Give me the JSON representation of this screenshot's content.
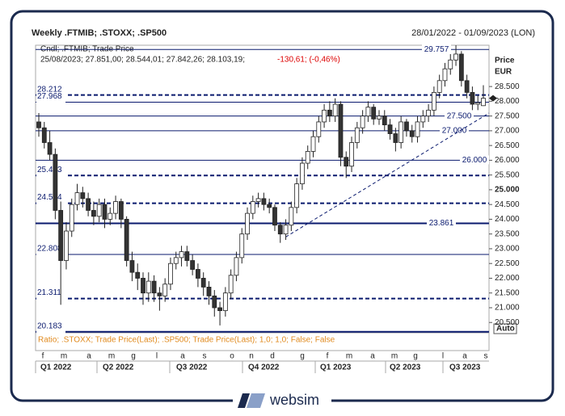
{
  "chart_data": {
    "type": "candlestick",
    "title": "Weekly .FTMIB; .STOXX; .SP500",
    "date_range": "28/01/2022 - 01/09/2023 (LON)",
    "series_label": "Cndl; .FTMIB; Trade Price",
    "last_bar": "25/08/2023; 27.851,00; 28.544,01; 27.842,26; 28.103,19;",
    "last_change": "-130,61; (-0,46%)",
    "axis_title": "Price",
    "axis_unit": "EUR",
    "scale_mode": "Auto",
    "indicator_label": "Ratio; .STOXX; Trade Price(Last); .SP500; Trade Price(Last); 1,0; 1,0; False; False",
    "brand": "websim",
    "months": [
      "f",
      "m",
      "a",
      "m",
      "g",
      "l",
      "a",
      "s",
      "o",
      "n",
      "d",
      "g",
      "f",
      "m",
      "a",
      "m",
      "g",
      "l",
      "a",
      "s"
    ],
    "quarters": [
      "Q1 2022",
      "Q2 2022",
      "Q3 2022",
      "Q4 2022",
      "Q1 2023",
      "Q2 2023",
      "Q3 2023"
    ],
    "ylim": [
      20150,
      29900
    ],
    "yticks": [
      {
        "value": 20500,
        "label": "20.500"
      },
      {
        "value": 21000,
        "label": "21.000"
      },
      {
        "value": 21500,
        "label": "21.500"
      },
      {
        "value": 22000,
        "label": "22.000"
      },
      {
        "value": 22500,
        "label": "22.500"
      },
      {
        "value": 23000,
        "label": "23.000"
      },
      {
        "value": 23500,
        "label": "23.500"
      },
      {
        "value": 24000,
        "label": "24.000"
      },
      {
        "value": 24500,
        "label": "24.500"
      },
      {
        "value": 25000,
        "label": "25.000"
      },
      {
        "value": 25500,
        "label": "25.500"
      },
      {
        "value": 26000,
        "label": "26.000"
      },
      {
        "value": 26500,
        "label": "26.500"
      },
      {
        "value": 27000,
        "label": "27.000"
      },
      {
        "value": 27500,
        "label": "27.500"
      },
      {
        "value": 28000,
        "label": "28.000"
      },
      {
        "value": 28500,
        "label": "28.500"
      }
    ],
    "levels": [
      {
        "value": 29757,
        "label": "29.757",
        "dashed": false,
        "bold": false,
        "label_side": "mid"
      },
      {
        "value": 28212,
        "label": "28.212",
        "dashed": true,
        "bold": true,
        "label_side": "left"
      },
      {
        "value": 27968,
        "label": "27.968",
        "dashed": false,
        "bold": false,
        "label_side": "left"
      },
      {
        "value": 27500,
        "label": "27.500",
        "dashed": false,
        "bold": false,
        "label_side": "mid"
      },
      {
        "value": 27000,
        "label": "27.000",
        "dashed": false,
        "bold": false,
        "label_side": "mid"
      },
      {
        "value": 26000,
        "label": "26.000",
        "dashed": false,
        "bold": false,
        "label_side": "mid"
      },
      {
        "value": 25483,
        "label": "25.483",
        "dashed": true,
        "bold": true,
        "label_side": "left"
      },
      {
        "value": 24544,
        "label": "24.544",
        "dashed": true,
        "bold": true,
        "label_side": "left"
      },
      {
        "value": 23861,
        "label": "23.861",
        "dashed": false,
        "bold": true,
        "label_side": "mid"
      },
      {
        "value": 22808,
        "label": "22.808",
        "dashed": false,
        "bold": false,
        "label_side": "left"
      },
      {
        "value": 21311,
        "label": "21.311",
        "dashed": true,
        "bold": true,
        "label_side": "left"
      },
      {
        "value": 20183,
        "label": "20.183",
        "dashed": false,
        "bold": true,
        "label_side": "left"
      }
    ],
    "trendline": [
      23400,
      27600
    ],
    "open": [
      27300,
      27100,
      26600,
      26200,
      24300,
      22600,
      23600,
      24500,
      24900,
      24700,
      24300,
      24100,
      24500,
      24000,
      24200,
      24600,
      24000,
      22600,
      22200,
      22000,
      21500,
      21900,
      21500,
      21400,
      21800,
      22500,
      22700,
      22900,
      22600,
      22300,
      22000,
      21700,
      21400,
      21000,
      20900,
      21500,
      22100,
      22700,
      23500,
      24200,
      24600,
      24700,
      24500,
      24400,
      23800,
      23500,
      23800,
      24400,
      25200,
      25900,
      26300,
      26800,
      27300,
      27700,
      27500,
      27900,
      26100,
      25800,
      26600,
      27100,
      27500,
      27800,
      27400,
      27500,
      27200,
      26900,
      26600,
      27300,
      27000,
      26800,
      27300,
      27500,
      27700,
      28300,
      28700,
      29100,
      29400,
      29600,
      28700,
      28300,
      27900,
      27851
    ],
    "high": [
      27600,
      27300,
      27000,
      26400,
      24600,
      23900,
      24700,
      25200,
      25100,
      24900,
      24600,
      24700,
      24700,
      24400,
      24800,
      24700,
      24100,
      22900,
      22500,
      22200,
      22200,
      22100,
      21700,
      22000,
      22700,
      22900,
      23100,
      23100,
      22800,
      22500,
      22200,
      21900,
      21600,
      21200,
      21700,
      22300,
      22900,
      23700,
      24400,
      24800,
      24900,
      24900,
      24700,
      24500,
      23900,
      24000,
      24600,
      25400,
      26100,
      26500,
      27000,
      27500,
      27900,
      28000,
      28100,
      28000,
      26300,
      26800,
      27300,
      27700,
      28000,
      27900,
      27700,
      27700,
      27400,
      27100,
      27500,
      27400,
      27200,
      27500,
      27700,
      27900,
      28500,
      28900,
      29300,
      29600,
      29900,
      29700,
      28900,
      28500,
      28200,
      28544
    ],
    "low": [
      26800,
      26400,
      26000,
      24000,
      21100,
      22300,
      23400,
      24300,
      24400,
      24100,
      23800,
      23900,
      23700,
      23800,
      24000,
      23700,
      22400,
      21900,
      21600,
      21100,
      21200,
      21200,
      20900,
      21200,
      21600,
      22300,
      22400,
      22400,
      22100,
      21700,
      21400,
      21100,
      20700,
      20400,
      20700,
      21300,
      21900,
      22500,
      23300,
      24000,
      24400,
      24300,
      24200,
      23600,
      23200,
      23300,
      23600,
      24200,
      25000,
      25700,
      26100,
      26600,
      27100,
      27300,
      27300,
      25800,
      25400,
      25600,
      26400,
      26900,
      27300,
      27200,
      27200,
      27000,
      26700,
      26300,
      26400,
      26800,
      26600,
      26600,
      27100,
      27300,
      27500,
      28100,
      28500,
      28900,
      29200,
      28500,
      28100,
      27700,
      27700,
      27842
    ],
    "close": [
      27100,
      26600,
      26200,
      24300,
      22600,
      23600,
      24500,
      24900,
      24700,
      24300,
      24100,
      24500,
      24000,
      24200,
      24600,
      24000,
      22600,
      22200,
      22000,
      21500,
      21900,
      21500,
      21400,
      21800,
      22500,
      22700,
      22900,
      22600,
      22300,
      22000,
      21700,
      21400,
      21000,
      20900,
      21500,
      22100,
      22700,
      23500,
      24200,
      24600,
      24700,
      24500,
      24400,
      23800,
      23500,
      23800,
      24400,
      25200,
      25900,
      26300,
      26800,
      27300,
      27700,
      27500,
      27900,
      26100,
      25800,
      26600,
      27100,
      27500,
      27800,
      27400,
      27500,
      27200,
      26900,
      26600,
      27300,
      27000,
      26800,
      27300,
      27500,
      27700,
      28300,
      28700,
      29100,
      29400,
      29600,
      28700,
      28300,
      27900,
      27950,
      28103
    ],
    "up_color": "#ffffff",
    "down_color": "#333333",
    "level_color": "#0a1a6e"
  }
}
